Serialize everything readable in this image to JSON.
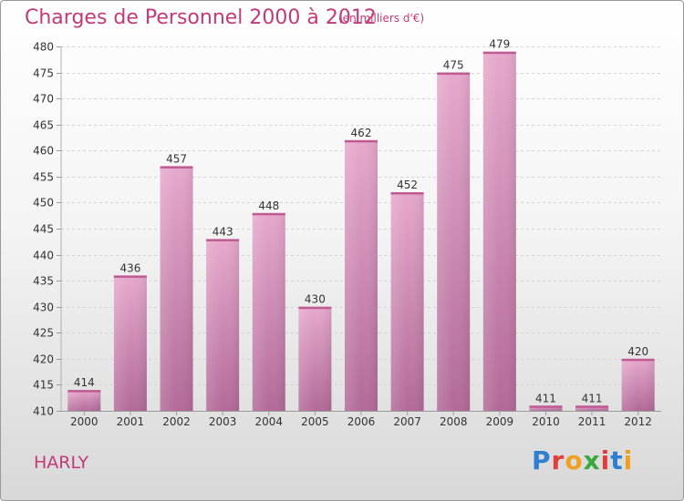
{
  "header": {
    "title": "Charges de Personnel 2000 à 2012",
    "subtitle": "(en milliers d'€)"
  },
  "footer": {
    "place": "HARLY",
    "logo_letters": [
      {
        "char": "P",
        "color": "#2f7fd0"
      },
      {
        "char": "r",
        "color": "#e23c3c"
      },
      {
        "char": "o",
        "color": "#f0a020"
      },
      {
        "char": "x",
        "color": "#3aa83a"
      },
      {
        "char": "i",
        "color": "#e23c3c"
      },
      {
        "char": "t",
        "color": "#2f7fd0"
      },
      {
        "char": "i",
        "color": "#f0a020"
      }
    ]
  },
  "chart_data": {
    "type": "bar",
    "title": "Charges de Personnel 2000 à 2012",
    "subtitle": "(en milliers d'€)",
    "categories": [
      "2000",
      "2001",
      "2002",
      "2003",
      "2004",
      "2005",
      "2006",
      "2007",
      "2008",
      "2009",
      "2010",
      "2011",
      "2012"
    ],
    "values": [
      414,
      436,
      457,
      443,
      448,
      430,
      462,
      452,
      475,
      479,
      411,
      411,
      420
    ],
    "ylim": [
      410,
      480
    ],
    "yticks": [
      410,
      415,
      420,
      425,
      430,
      435,
      440,
      445,
      450,
      455,
      460,
      465,
      470,
      475,
      480
    ],
    "grid": true,
    "bar_color_top": "#e6a8cc",
    "bar_color_bottom": "#b26a98",
    "title_color": "#c23a7a"
  }
}
